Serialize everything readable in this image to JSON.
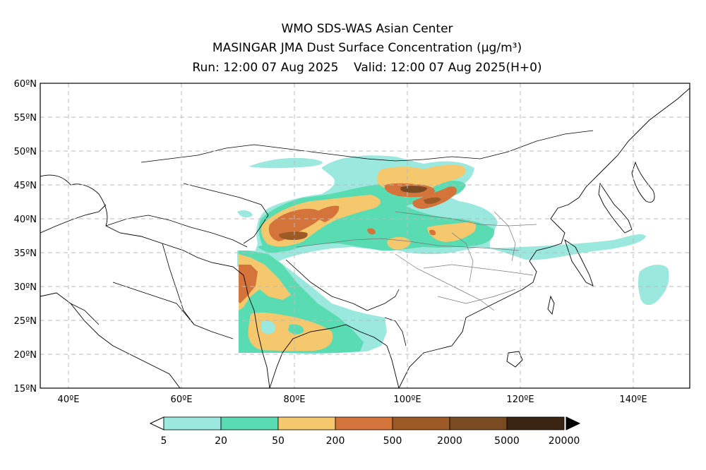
{
  "title": {
    "line1": "WMO SDS-WAS Asian Center",
    "line2": "MASINGAR JMA Dust Surface Concentration (μg/m³)",
    "line3": "Run: 12:00 07 Aug 2025    Valid: 12:00 07 Aug 2025(H+0)"
  },
  "map": {
    "lat_range": [
      15,
      60
    ],
    "lon_range": [
      35,
      150
    ],
    "lat_ticks": [
      "60ºN",
      "55ºN",
      "50ºN",
      "45ºN",
      "40ºN",
      "35ºN",
      "30ºN",
      "25ºN",
      "20ºN",
      "15ºN"
    ],
    "lat_values": [
      60,
      55,
      50,
      45,
      40,
      35,
      30,
      25,
      20,
      15
    ],
    "lon_ticks": [
      "40ºE",
      "60ºE",
      "80ºE",
      "100ºE",
      "120ºE",
      "140ºE"
    ],
    "lon_values": [
      40,
      60,
      80,
      100,
      120,
      140
    ],
    "grid": "dashed"
  },
  "colorbar": {
    "labels": [
      "5",
      "20",
      "50",
      "200",
      "500",
      "2000",
      "5000",
      "20000"
    ],
    "colors": [
      "#9ae8de",
      "#5adcb2",
      "#f5c86e",
      "#d4743a",
      "#9e5a26",
      "#7a4a22",
      "#3a2414"
    ]
  }
}
